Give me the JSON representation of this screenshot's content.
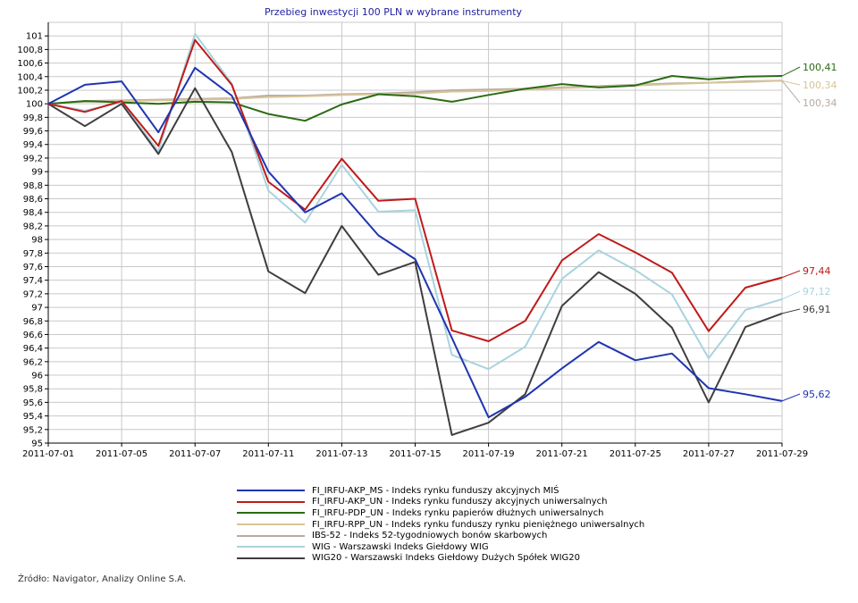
{
  "chart_data": {
    "type": "line",
    "title": "Przebieg inwestycji 100 PLN w wybrane instrumenty",
    "ylim": [
      95,
      101.2
    ],
    "y_ticks": [
      "95",
      "95,2",
      "95,4",
      "95,6",
      "95,8",
      "96",
      "96,2",
      "96,4",
      "96,6",
      "96,8",
      "97",
      "97,2",
      "97,4",
      "97,6",
      "97,8",
      "98",
      "98,2",
      "98,4",
      "98,6",
      "98,8",
      "99",
      "99,2",
      "99,4",
      "99,6",
      "99,8",
      "100",
      "100,2",
      "100,4",
      "100,6",
      "100,8",
      "101"
    ],
    "x_tick_labels": [
      "2011-07-01",
      "2011-07-05",
      "2011-07-07",
      "2011-07-11",
      "2011-07-13",
      "2011-07-15",
      "2011-07-19",
      "2011-07-21",
      "2011-07-25",
      "2011-07-27",
      "2011-07-29"
    ],
    "x": [
      "2011-07-01",
      "2011-07-04",
      "2011-07-05",
      "2011-07-06",
      "2011-07-07",
      "2011-07-08",
      "2011-07-11",
      "2011-07-12",
      "2011-07-13",
      "2011-07-14",
      "2011-07-15",
      "2011-07-18",
      "2011-07-19",
      "2011-07-20",
      "2011-07-21",
      "2011-07-22",
      "2011-07-25",
      "2011-07-26",
      "2011-07-27",
      "2011-07-28",
      "2011-07-29"
    ],
    "grid": true,
    "legend_position": "bottom",
    "series": [
      {
        "name": "FI_IRFU-AKP_MS - Indeks rynku funduszy akcyjnych MIŚ",
        "color": "#1f35b0",
        "end_label": "95,62",
        "values": [
          100.0,
          100.28,
          100.33,
          99.58,
          100.53,
          100.12,
          99.0,
          98.4,
          98.68,
          98.06,
          97.71,
          96.55,
          95.38,
          95.68,
          96.1,
          96.49,
          96.22,
          96.32,
          95.81,
          95.72,
          95.62
        ]
      },
      {
        "name": "FI_IRFU-AKP_UN - Indeks rynku funduszy akcyjnych uniwersalnych",
        "color": "#c01a1a",
        "end_label": "97,44",
        "values": [
          100.0,
          99.88,
          100.04,
          99.38,
          100.94,
          100.28,
          98.85,
          98.44,
          99.19,
          98.57,
          98.6,
          96.66,
          96.5,
          96.8,
          97.69,
          98.08,
          97.81,
          97.51,
          96.65,
          97.29,
          97.44
        ]
      },
      {
        "name": "FI_IRFU-PDP_UN - Indeks rynku papierów dłużnych uniwersalnych",
        "color": "#2b6b15",
        "end_label": "100,41",
        "values": [
          100.0,
          100.04,
          100.02,
          100.0,
          100.03,
          100.02,
          99.85,
          99.75,
          99.99,
          100.14,
          100.11,
          100.03,
          100.13,
          100.22,
          100.29,
          100.24,
          100.27,
          100.41,
          100.36,
          100.4,
          100.41
        ]
      },
      {
        "name": "FI_IRFU-RPP_UN - Indeks rynku funduszy rynku pieniężnego uniwersalnych",
        "color": "#d8c49a",
        "end_label": "100,34",
        "values": [
          100.0,
          100.03,
          100.04,
          100.05,
          100.06,
          100.07,
          100.1,
          100.11,
          100.13,
          100.14,
          100.15,
          100.18,
          100.19,
          100.21,
          100.23,
          100.25,
          100.27,
          100.29,
          100.31,
          100.32,
          100.34
        ]
      },
      {
        "name": "IBS-52 - Indeks 52-tygodniowych bonów skarbowych",
        "color": "#b7aaa0",
        "end_label": "100,34",
        "values": [
          100.0,
          100.04,
          100.05,
          100.06,
          100.07,
          100.08,
          100.12,
          100.12,
          100.14,
          100.15,
          100.17,
          100.2,
          100.21,
          100.22,
          100.24,
          100.26,
          100.28,
          100.3,
          100.31,
          100.33,
          100.34
        ]
      },
      {
        "name": "WIG - Warszawski Indeks Giełdowy WIG",
        "color": "#a9d3df",
        "end_label": "97,12",
        "values": [
          100.0,
          99.9,
          100.02,
          99.3,
          101.03,
          100.3,
          98.72,
          98.25,
          99.1,
          98.41,
          98.43,
          96.3,
          96.09,
          96.42,
          97.42,
          97.84,
          97.55,
          97.19,
          96.25,
          96.96,
          97.12
        ]
      },
      {
        "name": "WIG20 - Warszawski Indeks Giełdowy Dużych Spółek WIG20",
        "color": "#3e3e3e",
        "end_label": "96,91",
        "values": [
          100.0,
          99.67,
          100.0,
          99.26,
          100.23,
          99.29,
          97.53,
          97.21,
          98.2,
          97.48,
          97.67,
          95.12,
          95.3,
          95.72,
          97.02,
          97.52,
          97.2,
          96.7,
          95.6,
          96.71,
          96.91
        ]
      }
    ]
  },
  "source_text": "Źródło: Navigator, Analizy Online S.A."
}
